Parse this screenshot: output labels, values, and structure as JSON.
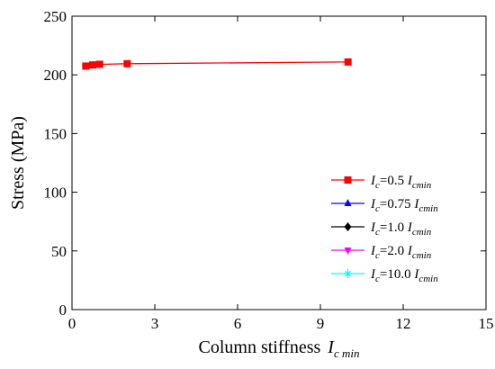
{
  "chart_data": {
    "type": "line",
    "xlabel_main": "Column stiffness",
    "xlabel_var": "I",
    "xlabel_sub": "c min",
    "ylabel": "Stress (MPa)",
    "xlim": [
      0,
      15
    ],
    "ylim": [
      0,
      250
    ],
    "x_ticks": [
      "0",
      "3",
      "6",
      "9",
      "12",
      "15"
    ],
    "y_ticks": [
      "0",
      "50",
      "100",
      "150",
      "200",
      "250"
    ],
    "legend_position": "bottom-right",
    "series": [
      {
        "var": "I",
        "sub": "c",
        "mid": "=0.5 ",
        "var2": "I",
        "sub2": "cmin",
        "color": "#ff0000",
        "marker": "square",
        "points": [
          [
            0.5,
            207.5
          ],
          [
            0.75,
            208.5
          ],
          [
            1.0,
            209.0
          ],
          [
            2.0,
            209.5
          ],
          [
            10.0,
            211.0
          ]
        ]
      },
      {
        "var": "I",
        "sub": "c",
        "mid": "=0.75 ",
        "var2": "I",
        "sub2": "cmin",
        "color": "#0000ff",
        "marker": "triangle-up",
        "points": []
      },
      {
        "var": "I",
        "sub": "c",
        "mid": "=1.0 ",
        "var2": "I",
        "sub2": "cmin",
        "color": "#000000",
        "marker": "diamond",
        "points": []
      },
      {
        "var": "I",
        "sub": "c",
        "mid": "=2.0 ",
        "var2": "I",
        "sub2": "cmin",
        "color": "#ff00ff",
        "marker": "triangle-down",
        "points": []
      },
      {
        "var": "I",
        "sub": "c",
        "mid": "=10.0 ",
        "var2": "I",
        "sub2": "cmin",
        "color": "#00ffff",
        "marker": "star",
        "points": []
      }
    ]
  }
}
